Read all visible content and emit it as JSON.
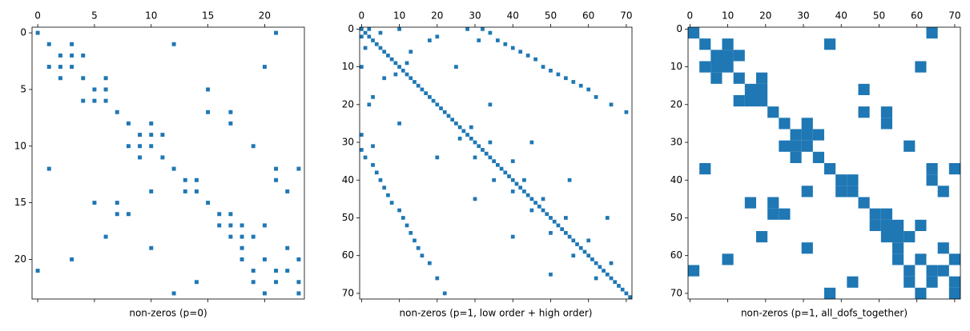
{
  "chart_data": [
    {
      "type": "spy",
      "xlabel": "non-zeros (p=0)",
      "color": "#1f77b4",
      "markersize": 0.35,
      "xlim": [
        -0.5,
        23.5
      ],
      "ylim": [
        23.5,
        -0.5
      ],
      "xticks": [
        0,
        5,
        10,
        15,
        20
      ],
      "yticks": [
        0,
        5,
        10,
        15,
        20
      ],
      "x": [
        0,
        21,
        1,
        3,
        12,
        2,
        3,
        4,
        1,
        2,
        3,
        20,
        2,
        4,
        6,
        5,
        6,
        15,
        4,
        5,
        6,
        7,
        15,
        17,
        8,
        10,
        17,
        9,
        10,
        11,
        8,
        9,
        10,
        19,
        9,
        11,
        1,
        12,
        21,
        23,
        13,
        14,
        21,
        10,
        13,
        14,
        22,
        5,
        7,
        15,
        7,
        8,
        16,
        17,
        16,
        17,
        18,
        20,
        6,
        17,
        18,
        19,
        10,
        18,
        22,
        3,
        18,
        20,
        23,
        0,
        19,
        21,
        22,
        14,
        19,
        21,
        23,
        12,
        20,
        23
      ],
      "y": [
        0,
        0,
        1,
        1,
        1,
        2,
        2,
        2,
        3,
        3,
        3,
        3,
        4,
        4,
        4,
        5,
        5,
        5,
        6,
        6,
        6,
        7,
        7,
        7,
        8,
        8,
        8,
        9,
        9,
        9,
        10,
        10,
        10,
        10,
        11,
        11,
        12,
        12,
        12,
        12,
        13,
        13,
        13,
        14,
        14,
        14,
        14,
        15,
        15,
        15,
        16,
        16,
        16,
        16,
        17,
        17,
        17,
        17,
        18,
        18,
        18,
        18,
        19,
        19,
        19,
        20,
        20,
        20,
        20,
        21,
        21,
        21,
        21,
        22,
        22,
        22,
        22,
        23,
        23,
        23
      ]
    },
    {
      "type": "spy",
      "xlabel": "non-zeros (p=1, low order + high order)",
      "color": "#1f77b4",
      "markersize": 1,
      "xlim": [
        -0.5,
        71.5
      ],
      "ylim": [
        71.5,
        -0.5
      ],
      "xticks": [
        0,
        10,
        20,
        30,
        40,
        50,
        60,
        70
      ],
      "yticks": [
        0,
        10,
        20,
        30,
        40,
        50,
        60,
        70
      ],
      "x": [
        0,
        1,
        2,
        3,
        4,
        5,
        6,
        7,
        8,
        9,
        10,
        11,
        12,
        13,
        14,
        15,
        16,
        17,
        18,
        19,
        20,
        21,
        22,
        23,
        24,
        25,
        26,
        27,
        28,
        29,
        30,
        31,
        32,
        33,
        34,
        35,
        36,
        37,
        38,
        39,
        40,
        41,
        42,
        43,
        44,
        45,
        46,
        47,
        48,
        49,
        50,
        51,
        52,
        53,
        54,
        55,
        56,
        57,
        58,
        59,
        60,
        61,
        62,
        63,
        64,
        65,
        66,
        67,
        68,
        69,
        70,
        71,
        2,
        10,
        28,
        32,
        5,
        34,
        20,
        31,
        36,
        38,
        40,
        13,
        42,
        44,
        46,
        12,
        48,
        50,
        52,
        54,
        56,
        58,
        60,
        62,
        66,
        70,
        29,
        34,
        40,
        43,
        48,
        54,
        60,
        66,
        18,
        25,
        34,
        45,
        55,
        65,
        0,
        0,
        0,
        0,
        1,
        1,
        2,
        3,
        3,
        4,
        5,
        6,
        6,
        7,
        8,
        9,
        10,
        11,
        12,
        13,
        14,
        15,
        16,
        18,
        20,
        22,
        26,
        30,
        35,
        40,
        45,
        50,
        56,
        62,
        3,
        10,
        20,
        30,
        40,
        50
      ],
      "y": [
        0,
        1,
        2,
        3,
        4,
        5,
        6,
        7,
        8,
        9,
        10,
        11,
        12,
        13,
        14,
        15,
        16,
        17,
        18,
        19,
        20,
        21,
        22,
        23,
        24,
        25,
        26,
        27,
        28,
        29,
        30,
        31,
        32,
        33,
        34,
        35,
        36,
        37,
        38,
        39,
        40,
        41,
        42,
        43,
        44,
        45,
        46,
        47,
        48,
        49,
        50,
        51,
        52,
        53,
        54,
        55,
        56,
        57,
        58,
        59,
        60,
        61,
        62,
        63,
        64,
        65,
        66,
        67,
        68,
        69,
        70,
        71,
        0,
        0,
        0,
        0,
        1,
        1,
        2,
        3,
        3,
        4,
        5,
        6,
        6,
        7,
        8,
        9,
        10,
        11,
        12,
        13,
        14,
        15,
        16,
        18,
        20,
        22,
        26,
        30,
        35,
        40,
        45,
        50,
        56,
        62,
        3,
        10,
        20,
        30,
        40,
        50,
        2,
        10,
        28,
        32,
        5,
        34,
        20,
        31,
        36,
        38,
        40,
        13,
        42,
        44,
        46,
        12,
        48,
        50,
        52,
        54,
        56,
        58,
        60,
        62,
        66,
        70,
        29,
        34,
        40,
        43,
        48,
        54,
        60,
        66,
        18,
        25,
        34,
        45,
        55,
        65
      ]
    },
    {
      "type": "spy",
      "xlabel": "non-zeros (p=1, all_dofs_together)",
      "color": "#1f77b4",
      "markersize": 3,
      "xlim": [
        -0.5,
        71.5
      ],
      "ylim": [
        71.5,
        -0.5
      ],
      "xticks": [
        0,
        10,
        20,
        30,
        40,
        50,
        60,
        70
      ],
      "yticks": [
        0,
        10,
        20,
        30,
        40,
        50,
        60,
        70
      ],
      "x": [
        1,
        64,
        4,
        10,
        37,
        7,
        10,
        13,
        4,
        7,
        10,
        61,
        7,
        13,
        19,
        16,
        19,
        46,
        13,
        16,
        19,
        22,
        46,
        52,
        25,
        31,
        52,
        28,
        31,
        34,
        25,
        28,
        31,
        58,
        28,
        34,
        4,
        37,
        64,
        70,
        40,
        43,
        64,
        31,
        40,
        43,
        67,
        16,
        22,
        46,
        22,
        25,
        49,
        52,
        49,
        52,
        55,
        61,
        19,
        52,
        55,
        58,
        31,
        55,
        67,
        10,
        55,
        61,
        70,
        1,
        58,
        64,
        67,
        43,
        58,
        64,
        70,
        37,
        61,
        70
      ],
      "y": [
        1,
        1,
        4,
        4,
        4,
        7,
        7,
        7,
        10,
        10,
        10,
        10,
        13,
        13,
        13,
        16,
        16,
        16,
        19,
        19,
        19,
        22,
        22,
        22,
        25,
        25,
        25,
        28,
        28,
        28,
        31,
        31,
        31,
        31,
        34,
        34,
        37,
        37,
        37,
        37,
        40,
        40,
        40,
        43,
        43,
        43,
        43,
        46,
        46,
        46,
        49,
        49,
        49,
        49,
        52,
        52,
        52,
        52,
        55,
        55,
        55,
        55,
        58,
        58,
        58,
        61,
        61,
        61,
        61,
        64,
        64,
        64,
        64,
        67,
        67,
        67,
        67,
        70,
        70,
        70
      ]
    }
  ]
}
